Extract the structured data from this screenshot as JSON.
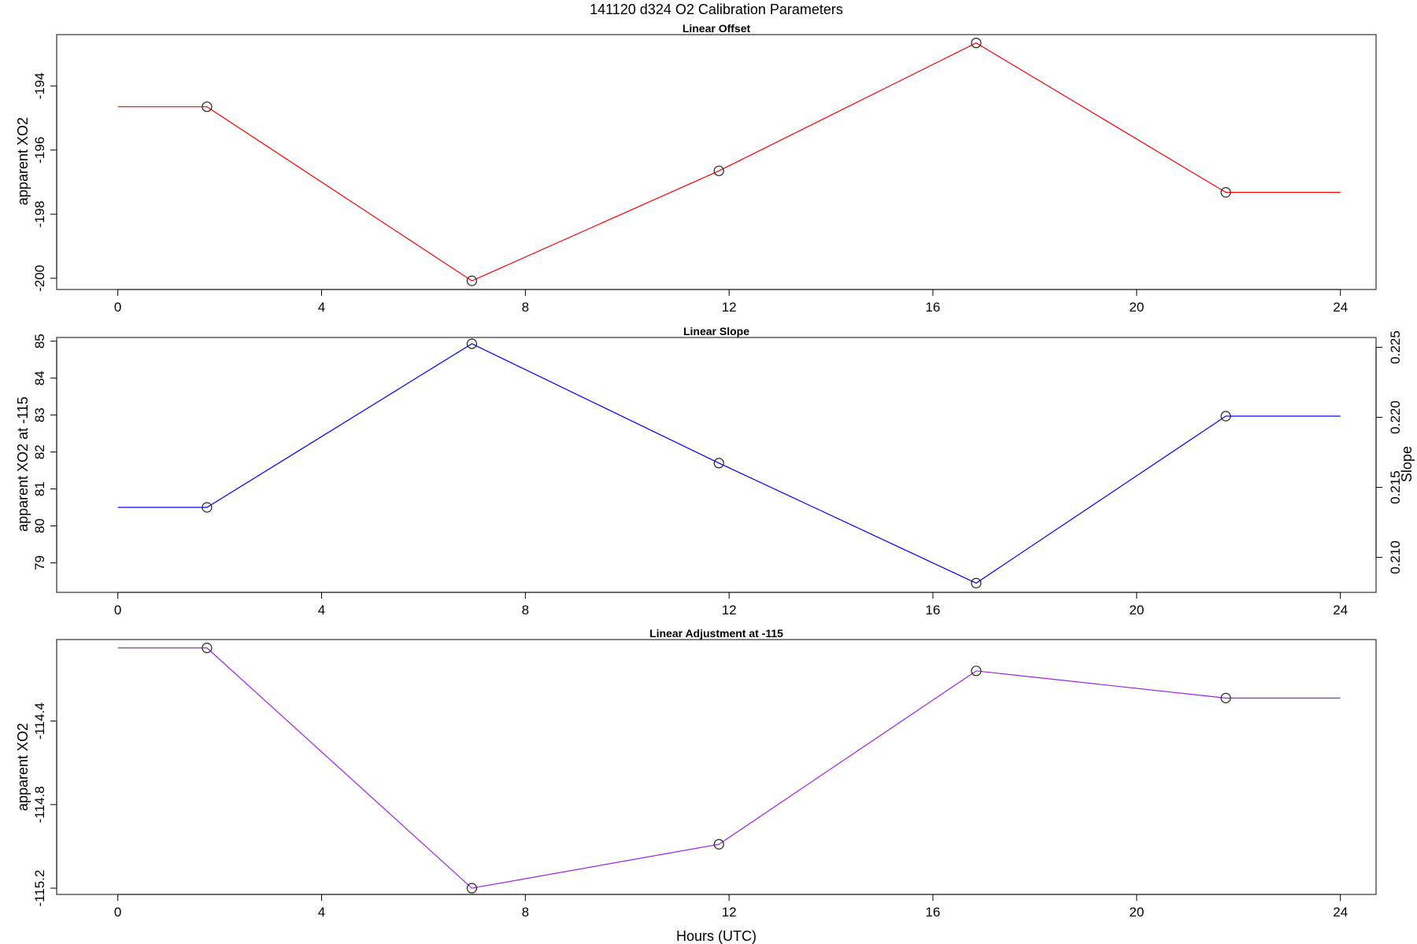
{
  "figure": {
    "title": "141120   d324   O2 Calibration Parameters",
    "xlabel": "Hours (UTC)"
  },
  "chart_data": [
    {
      "type": "line",
      "title": "Linear Offset",
      "xlabel": "",
      "ylabel": "apparent XO2",
      "color": "#ff0000",
      "xlim": [
        -1.2,
        24.7
      ],
      "ylim": [
        -200.35,
        -192.4
      ],
      "x_ticks": [
        0,
        4,
        8,
        12,
        16,
        20,
        24
      ],
      "y_ticks": [
        -194,
        -196,
        -198,
        -200
      ],
      "points": {
        "x": [
          1.75,
          6.95,
          11.8,
          16.85,
          21.75
        ],
        "y": [
          -194.65,
          -200.08,
          -196.65,
          -192.66,
          -197.32
        ]
      },
      "extend_to": [
        0,
        24
      ]
    },
    {
      "type": "line",
      "title": "Linear Slope",
      "xlabel": "",
      "ylabel": "apparent XO2 at -115",
      "y2label": "Slope",
      "color": "#0000ff",
      "xlim": [
        -1.2,
        24.7
      ],
      "ylim": [
        78.2,
        85.1
      ],
      "x_ticks": [
        0,
        4,
        8,
        12,
        16,
        20,
        24
      ],
      "y_ticks": [
        79,
        80,
        81,
        82,
        83,
        84,
        85
      ],
      "y2_ticks": [
        "0.210",
        "0.215",
        "0.220",
        "0.225"
      ],
      "points": {
        "x": [
          1.75,
          6.95,
          11.8,
          16.85,
          21.75
        ],
        "y": [
          80.5,
          84.93,
          81.7,
          78.45,
          82.97
        ]
      },
      "extend_to": [
        0,
        24
      ]
    },
    {
      "type": "line",
      "title": "Linear Adjustment at -115",
      "xlabel": "Hours (UTC)",
      "ylabel": "apparent XO2",
      "color": "#a020f0",
      "xlim": [
        -1.2,
        24.7
      ],
      "ylim": [
        -115.23,
        -114.01
      ],
      "x_ticks": [
        0,
        4,
        8,
        12,
        16,
        20,
        24
      ],
      "y_ticks": [
        "-114.4",
        "-114.8",
        "-115.2"
      ],
      "points": {
        "x": [
          1.75,
          6.95,
          11.8,
          16.85,
          21.75
        ],
        "y": [
          -114.05,
          -115.2,
          -114.99,
          -114.16,
          -114.29
        ]
      },
      "extend_to": [
        0,
        24
      ]
    }
  ]
}
